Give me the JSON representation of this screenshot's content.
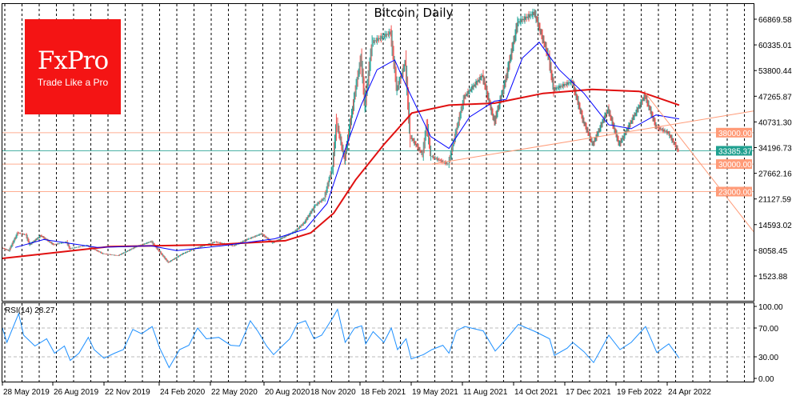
{
  "chart_data": {
    "type": "candlestick",
    "title": "Bitcoin, Daily",
    "brand": {
      "logo": "FxPro",
      "slogan": "Trade Like a Pro",
      "color": "#f41414"
    },
    "price_axis": {
      "ticks": [
        "66869.58",
        "60335.01",
        "53800.44",
        "47265.87",
        "40731.30",
        "34196.73",
        "27662.16",
        "21127.59",
        "14593.02",
        "8058.45",
        "1523.88"
      ],
      "ylim": [
        1523.88,
        66869.58
      ]
    },
    "date_ticks": [
      {
        "date": "2019-05-28",
        "label": "28 May 2019"
      },
      {
        "date": "2019-08-26",
        "label": "26 Aug 2019"
      },
      {
        "date": "2019-11-22",
        "label": "22 Nov 2019"
      },
      {
        "date": "2020-02-24",
        "label": "24 Feb 2020"
      },
      {
        "date": "2020-05-22",
        "label": "22 May 2020"
      },
      {
        "date": "2020-08-20",
        "label": "20 Aug 2020"
      },
      {
        "date": "2020-11-18",
        "label": "18 Nov 2020"
      },
      {
        "date": "2021-02-18",
        "label": "18 Feb 2021"
      },
      {
        "date": "2021-05-19",
        "label": "19 May 2021"
      },
      {
        "date": "2021-08-11",
        "label": "11 Aug 2021"
      },
      {
        "date": "2021-10-14",
        "label": "14 Oct 2021"
      },
      {
        "date": "2021-12-17",
        "label": "17 Dec 2021"
      },
      {
        "date": "2022-02-19",
        "label": "19 Feb 2022"
      },
      {
        "date": "2022-04-24",
        "label": "24 Apr 2022"
      }
    ],
    "price": [
      [
        "2019-05-28",
        8700
      ],
      [
        "2019-06-10",
        8000
      ],
      [
        "2019-06-26",
        12500
      ],
      [
        "2019-07-10",
        12000
      ],
      [
        "2019-07-17",
        9500
      ],
      [
        "2019-08-06",
        11800
      ],
      [
        "2019-08-29",
        9500
      ],
      [
        "2019-09-20",
        10200
      ],
      [
        "2019-09-25",
        8500
      ],
      [
        "2019-10-25",
        9300
      ],
      [
        "2019-11-22",
        7200
      ],
      [
        "2019-12-17",
        6700
      ],
      [
        "2020-01-14",
        8800
      ],
      [
        "2020-02-12",
        10300
      ],
      [
        "2020-03-12",
        5000
      ],
      [
        "2020-04-06",
        7200
      ],
      [
        "2020-04-30",
        8700
      ],
      [
        "2020-06-01",
        10200
      ],
      [
        "2020-07-01",
        9200
      ],
      [
        "2020-07-27",
        11000
      ],
      [
        "2020-08-17",
        12300
      ],
      [
        "2020-09-08",
        10000
      ],
      [
        "2020-10-21",
        12800
      ],
      [
        "2020-11-10",
        15300
      ],
      [
        "2020-11-30",
        19500
      ],
      [
        "2020-12-16",
        21300
      ],
      [
        "2020-12-31",
        29000
      ],
      [
        "2021-01-08",
        40500
      ],
      [
        "2021-01-22",
        31000
      ],
      [
        "2021-02-08",
        46500
      ],
      [
        "2021-02-21",
        57000
      ],
      [
        "2021-02-28",
        45000
      ],
      [
        "2021-03-13",
        61000
      ],
      [
        "2021-04-14",
        63500
      ],
      [
        "2021-04-25",
        49000
      ],
      [
        "2021-05-10",
        56000
      ],
      [
        "2021-05-19",
        37000
      ],
      [
        "2021-06-08",
        32500
      ],
      [
        "2021-06-15",
        40000
      ],
      [
        "2021-06-22",
        32000
      ],
      [
        "2021-07-20",
        30000
      ],
      [
        "2021-08-14",
        47000
      ],
      [
        "2021-09-06",
        52500
      ],
      [
        "2021-09-21",
        40700
      ],
      [
        "2021-10-05",
        51500
      ],
      [
        "2021-10-20",
        66000
      ],
      [
        "2021-11-10",
        68500
      ],
      [
        "2021-11-28",
        57000
      ],
      [
        "2021-12-04",
        49000
      ],
      [
        "2021-12-27",
        51000
      ],
      [
        "2022-01-10",
        41000
      ],
      [
        "2022-01-22",
        35000
      ],
      [
        "2022-02-10",
        44000
      ],
      [
        "2022-02-24",
        35000
      ],
      [
        "2022-03-28",
        47500
      ],
      [
        "2022-04-11",
        39500
      ],
      [
        "2022-04-26",
        38000
      ],
      [
        "2022-05-09",
        33385.37
      ]
    ],
    "ma_fast": {
      "color": "#0000ff",
      "points": [
        [
          "2019-06-20",
          8800
        ],
        [
          "2019-08-10",
          10800
        ],
        [
          "2019-11-10",
          8800
        ],
        [
          "2020-02-10",
          9200
        ],
        [
          "2020-03-25",
          8000
        ],
        [
          "2020-06-10",
          9200
        ],
        [
          "2020-09-10",
          11000
        ],
        [
          "2020-11-10",
          13500
        ],
        [
          "2020-12-20",
          20000
        ],
        [
          "2021-01-20",
          33000
        ],
        [
          "2021-02-20",
          45000
        ],
        [
          "2021-03-20",
          54000
        ],
        [
          "2021-04-20",
          56500
        ],
        [
          "2021-05-10",
          50000
        ],
        [
          "2021-06-20",
          37000
        ],
        [
          "2021-07-20",
          34000
        ],
        [
          "2021-08-20",
          42000
        ],
        [
          "2021-09-20",
          46000
        ],
        [
          "2021-10-05",
          46500
        ],
        [
          "2021-10-25",
          57000
        ],
        [
          "2021-11-15",
          61000
        ],
        [
          "2021-12-10",
          54000
        ],
        [
          "2022-01-10",
          48000
        ],
        [
          "2022-02-10",
          40000
        ],
        [
          "2022-03-10",
          39000
        ],
        [
          "2022-04-10",
          42500
        ],
        [
          "2022-05-09",
          41500
        ]
      ]
    },
    "ma_slow": {
      "color": "#e01010",
      "points": [
        [
          "2019-05-28",
          6000
        ],
        [
          "2019-12-01",
          9000
        ],
        [
          "2020-06-01",
          9500
        ],
        [
          "2020-10-01",
          10500
        ],
        [
          "2020-11-20",
          12500
        ],
        [
          "2021-01-01",
          17500
        ],
        [
          "2021-02-10",
          26000
        ],
        [
          "2021-04-01",
          35000
        ],
        [
          "2021-05-20",
          43000
        ],
        [
          "2021-07-20",
          45000
        ],
        [
          "2021-09-20",
          45500
        ],
        [
          "2021-11-20",
          48000
        ],
        [
          "2022-01-20",
          49000
        ],
        [
          "2022-03-20",
          48500
        ],
        [
          "2022-05-09",
          45000
        ]
      ]
    },
    "levels": [
      {
        "price": 38000,
        "label": "38000.00",
        "color": "#ff9b78"
      },
      {
        "price": 33385.37,
        "label": "33385.37",
        "color": "#20a090"
      },
      {
        "price": 30000,
        "label": "30000.00",
        "color": "#ff9b78"
      },
      {
        "price": 23000,
        "label": "23000.00",
        "color": "#ff9b78"
      }
    ],
    "trendlines": [
      {
        "from": [
          "2021-06-22",
          30000
        ],
        "to_price_at_right_edge": 43500,
        "color": "#ff9b78"
      },
      {
        "from": [
          "2022-03-28",
          48000
        ],
        "to_price_at_right_edge": 12800,
        "color": "#ff9b78"
      }
    ],
    "candle_colors": {
      "up": "#26a69a",
      "down": "#ef5350"
    },
    "rsi": {
      "label": "RSI(14) 28.27",
      "color": "#1e90ff",
      "levels": [
        70,
        30
      ],
      "ylim": [
        0,
        100
      ],
      "ticks": [
        "100.00",
        "70.00",
        "30.00",
        "0.00"
      ],
      "points": [
        [
          "2019-05-28",
          70
        ],
        [
          "2019-06-05",
          50
        ],
        [
          "2019-06-26",
          90
        ],
        [
          "2019-07-05",
          60
        ],
        [
          "2019-07-25",
          45
        ],
        [
          "2019-08-15",
          55
        ],
        [
          "2019-08-29",
          35
        ],
        [
          "2019-09-15",
          45
        ],
        [
          "2019-09-25",
          25
        ],
        [
          "2019-10-10",
          35
        ],
        [
          "2019-10-26",
          57
        ],
        [
          "2019-11-05",
          40
        ],
        [
          "2019-11-22",
          28
        ],
        [
          "2019-12-10",
          35
        ],
        [
          "2019-12-25",
          40
        ],
        [
          "2020-01-10",
          68
        ],
        [
          "2020-01-25",
          62
        ],
        [
          "2020-02-12",
          72
        ],
        [
          "2020-02-25",
          42
        ],
        [
          "2020-03-12",
          15
        ],
        [
          "2020-03-30",
          40
        ],
        [
          "2020-04-15",
          46
        ],
        [
          "2020-04-30",
          70
        ],
        [
          "2020-05-15",
          55
        ],
        [
          "2020-06-05",
          57
        ],
        [
          "2020-06-25",
          46
        ],
        [
          "2020-07-10",
          45
        ],
        [
          "2020-07-28",
          80
        ],
        [
          "2020-08-10",
          65
        ],
        [
          "2020-08-25",
          45
        ],
        [
          "2020-09-08",
          33
        ],
        [
          "2020-09-25",
          45
        ],
        [
          "2020-10-10",
          55
        ],
        [
          "2020-10-25",
          76
        ],
        [
          "2020-11-10",
          80
        ],
        [
          "2020-11-26",
          55
        ],
        [
          "2020-12-10",
          60
        ],
        [
          "2020-12-31",
          85
        ],
        [
          "2021-01-08",
          96
        ],
        [
          "2021-01-22",
          50
        ],
        [
          "2021-02-08",
          70
        ],
        [
          "2021-02-21",
          73
        ],
        [
          "2021-02-28",
          48
        ],
        [
          "2021-03-13",
          65
        ],
        [
          "2021-04-01",
          50
        ],
        [
          "2021-04-14",
          70
        ],
        [
          "2021-04-25",
          40
        ],
        [
          "2021-05-10",
          55
        ],
        [
          "2021-05-19",
          27
        ],
        [
          "2021-06-08",
          33
        ],
        [
          "2021-06-22",
          40
        ],
        [
          "2021-07-10",
          46
        ],
        [
          "2021-07-20",
          35
        ],
        [
          "2021-08-01",
          66
        ],
        [
          "2021-08-14",
          72
        ],
        [
          "2021-09-06",
          66
        ],
        [
          "2021-09-21",
          38
        ],
        [
          "2021-10-05",
          55
        ],
        [
          "2021-10-20",
          75
        ],
        [
          "2021-11-10",
          65
        ],
        [
          "2021-11-28",
          55
        ],
        [
          "2021-12-04",
          32
        ],
        [
          "2021-12-20",
          42
        ],
        [
          "2021-12-27",
          50
        ],
        [
          "2022-01-10",
          37
        ],
        [
          "2022-01-22",
          22
        ],
        [
          "2022-02-10",
          60
        ],
        [
          "2022-02-24",
          40
        ],
        [
          "2022-03-10",
          50
        ],
        [
          "2022-03-28",
          72
        ],
        [
          "2022-04-11",
          36
        ],
        [
          "2022-04-26",
          48
        ],
        [
          "2022-05-09",
          28.27
        ]
      ]
    }
  }
}
